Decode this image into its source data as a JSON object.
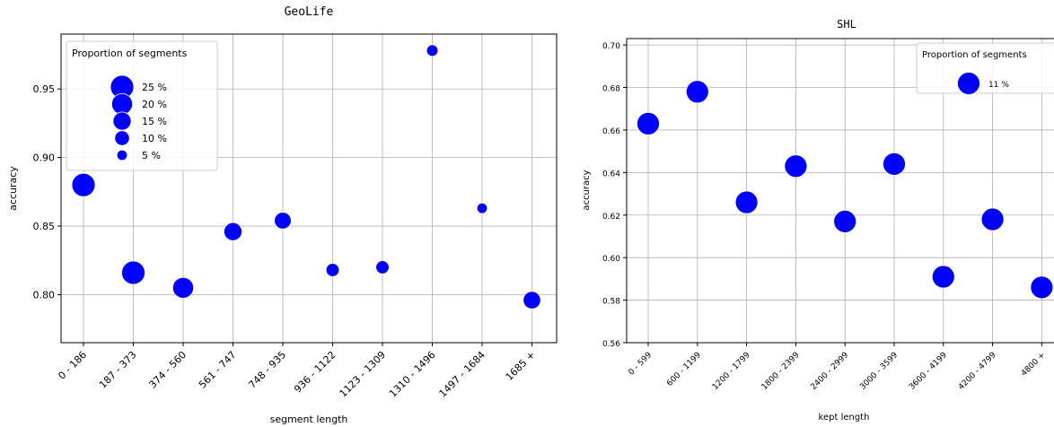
{
  "chart_data": [
    {
      "type": "scatter",
      "title": "GeoLife",
      "xlabel": "segment length",
      "ylabel": "accuracy",
      "categories": [
        "0 - 186",
        "187 - 373",
        "374 - 560",
        "561 - 747",
        "748 - 935",
        "936 - 1122",
        "1123 - 1309",
        "1310 - 1496",
        "1497 - 1684",
        "1685 +"
      ],
      "values": [
        0.88,
        0.816,
        0.805,
        0.846,
        0.854,
        0.818,
        0.82,
        0.978,
        0.863,
        0.796
      ],
      "proportions": [
        25,
        25,
        20,
        15,
        13,
        8,
        8,
        6,
        5,
        14
      ],
      "ylim": [
        0.765,
        0.99
      ],
      "yticks": [
        0.8,
        0.85,
        0.9,
        0.95
      ],
      "ytick_labels": [
        "0.80",
        "0.85",
        "0.90",
        "0.95"
      ],
      "grid": true,
      "point_color": "#0000ff",
      "legend": {
        "title": "Proportion of segments",
        "placement": "top-left",
        "entries": [
          {
            "label": "25 %",
            "value": 25
          },
          {
            "label": "20 %",
            "value": 20
          },
          {
            "label": "15 %",
            "value": 15
          },
          {
            "label": "10 %",
            "value": 10
          },
          {
            "label": "5 %",
            "value": 5
          }
        ]
      }
    },
    {
      "type": "scatter",
      "title": "SHL",
      "xlabel": "kept length",
      "ylabel": "accuracy",
      "categories": [
        "0 - 599",
        "600 - 1199",
        "1200 - 1799",
        "1800 - 2399",
        "2400 - 2999",
        "3000 - 3599",
        "3600 - 4199",
        "4200 - 4799",
        "4800 +"
      ],
      "values": [
        0.663,
        0.678,
        0.626,
        0.643,
        0.617,
        0.644,
        0.591,
        0.618,
        0.586
      ],
      "proportions": [
        11,
        11,
        11,
        11,
        11,
        11,
        11,
        11,
        11
      ],
      "ylim": [
        0.56,
        0.703
      ],
      "yticks": [
        0.56,
        0.58,
        0.6,
        0.62,
        0.64,
        0.66,
        0.68,
        0.7
      ],
      "ytick_labels": [
        "0.56",
        "0.58",
        "0.60",
        "0.62",
        "0.64",
        "0.66",
        "0.68",
        "0.70"
      ],
      "grid": true,
      "point_color": "#0000ff",
      "legend": {
        "title": "Proportion of segments",
        "placement": "top-right",
        "entries": [
          {
            "label": "11 %",
            "value": 11
          }
        ]
      }
    }
  ]
}
